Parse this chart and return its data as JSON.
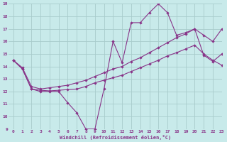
{
  "xlabel": "Windchill (Refroidissement éolien,°C)",
  "background_color": "#c8eaea",
  "grid_color": "#a8cccc",
  "line_color": "#883388",
  "xlim": [
    -0.5,
    23
  ],
  "ylim": [
    9,
    19
  ],
  "xticks": [
    0,
    1,
    2,
    3,
    4,
    5,
    6,
    7,
    8,
    9,
    10,
    11,
    12,
    13,
    14,
    15,
    16,
    17,
    18,
    19,
    20,
    21,
    22,
    23
  ],
  "yticks": [
    9,
    10,
    11,
    12,
    13,
    14,
    15,
    16,
    17,
    18,
    19
  ],
  "line1_x": [
    0,
    1,
    2,
    3,
    4,
    5,
    6,
    7,
    8,
    9,
    10,
    11,
    12,
    13,
    14,
    15,
    16,
    17,
    18,
    19,
    20,
    21,
    22,
    23
  ],
  "line1_y": [
    14.5,
    13.8,
    12.2,
    12.0,
    12.0,
    12.0,
    11.1,
    10.3,
    9.0,
    9.0,
    12.2,
    16.0,
    14.3,
    17.5,
    17.5,
    18.3,
    19.0,
    18.3,
    16.5,
    16.7,
    17.0,
    14.9,
    14.4,
    15.0
  ],
  "line1_marker_x": [
    0,
    1,
    2,
    3,
    4,
    5,
    6,
    7,
    8,
    9,
    10,
    11,
    12,
    13,
    14,
    15,
    16,
    17,
    18,
    19,
    20,
    21,
    22,
    23
  ],
  "line1_marker_y": [
    14.5,
    13.8,
    12.2,
    12.0,
    12.0,
    12.0,
    11.1,
    10.3,
    9.0,
    9.0,
    12.2,
    16.0,
    14.3,
    17.5,
    17.5,
    18.3,
    19.0,
    18.3,
    16.5,
    16.7,
    17.0,
    14.9,
    14.4,
    15.0
  ],
  "line2_full_x": [
    0,
    1,
    2,
    3,
    4,
    5,
    6,
    7,
    8,
    9,
    10,
    11,
    12,
    13,
    14,
    15,
    16,
    17,
    18,
    19,
    20,
    21,
    22,
    23
  ],
  "line2_full_y": [
    14.5,
    13.8,
    12.2,
    12.1,
    12.05,
    12.1,
    12.15,
    12.2,
    12.4,
    12.7,
    12.9,
    13.1,
    13.3,
    13.6,
    13.9,
    14.2,
    14.5,
    14.85,
    15.1,
    15.4,
    15.7,
    15.0,
    14.5,
    14.1
  ],
  "line3_full_x": [
    0,
    1,
    2,
    3,
    4,
    5,
    6,
    7,
    8,
    9,
    10,
    11,
    12,
    13,
    14,
    15,
    16,
    17,
    18,
    19,
    20,
    21,
    22,
    23
  ],
  "line3_full_y": [
    14.5,
    13.9,
    12.4,
    12.2,
    12.3,
    12.4,
    12.5,
    12.7,
    12.9,
    13.2,
    13.5,
    13.8,
    14.0,
    14.4,
    14.7,
    15.1,
    15.5,
    15.9,
    16.3,
    16.6,
    17.0,
    16.5,
    16.0,
    17.0
  ]
}
